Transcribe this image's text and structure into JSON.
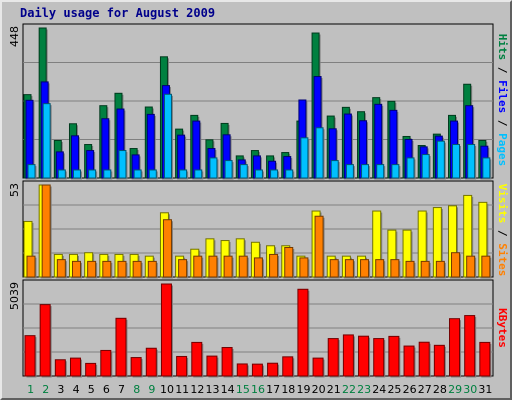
{
  "title": "Daily usage for August 2009",
  "colors": {
    "hits": "#008040",
    "files": "#0000ff",
    "pages": "#00c0ff",
    "visits": "#ffff00",
    "sites": "#ff8000",
    "kbytes": "#ff0000",
    "weekday": "#000000",
    "weekend": "#008040",
    "title": "#00008b"
  },
  "chart_data": [
    {
      "type": "bar",
      "title": "Daily usage for August 2009",
      "categories": [
        "1",
        "2",
        "3",
        "4",
        "5",
        "6",
        "7",
        "8",
        "9",
        "10",
        "11",
        "12",
        "13",
        "14",
        "15",
        "16",
        "17",
        "18",
        "19",
        "20",
        "21",
        "22",
        "23",
        "24",
        "25",
        "26",
        "27",
        "28",
        "29",
        "30",
        "31"
      ],
      "weekend_days": [
        "1",
        "2",
        "8",
        "9",
        "15",
        "16",
        "22",
        "23",
        "29",
        "30"
      ],
      "y_max_label": "448",
      "ylim": [
        0,
        448
      ],
      "series": [
        {
          "name": "Hits",
          "values": [
            249,
            448,
            112,
            162,
            100,
            216,
            253,
            88,
            212,
            362,
            146,
            187,
            114,
            163,
            66,
            82,
            66,
            76,
            170,
            433,
            185,
            211,
            198,
            240,
            229,
            124,
            97,
            131,
            187,
            280,
            112
          ]
        },
        {
          "name": "Files",
          "values": [
            232,
            287,
            78,
            126,
            82,
            177,
            206,
            69,
            190,
            276,
            128,
            170,
            88,
            129,
            54,
            66,
            50,
            64,
            233,
            303,
            147,
            191,
            171,
            220,
            202,
            115,
            93,
            125,
            170,
            216,
            95
          ]
        },
        {
          "name": "Pages",
          "values": [
            40,
            222,
            24,
            24,
            24,
            24,
            82,
            24,
            24,
            250,
            24,
            24,
            60,
            52,
            40,
            24,
            24,
            24,
            120,
            150,
            52,
            40,
            40,
            40,
            40,
            60,
            70,
            110,
            100,
            100,
            60
          ]
        }
      ],
      "right_labels": {
        "pages": "Pages",
        "files": "Files",
        "hits": "Hits",
        "sep": " / "
      }
    },
    {
      "type": "bar",
      "y_max_label": "53",
      "ylim": [
        0,
        53
      ],
      "series": [
        {
          "name": "Visits",
          "values": [
            32,
            53,
            13,
            13,
            14,
            13,
            13,
            13,
            12,
            37,
            12,
            16,
            22,
            21,
            22,
            20,
            18,
            18,
            12,
            38,
            12,
            12,
            12,
            38,
            27,
            27,
            38,
            40,
            41,
            47,
            43
          ]
        },
        {
          "name": "Sites",
          "values": [
            12,
            53,
            10,
            9,
            9,
            9,
            9,
            9,
            9,
            33,
            10,
            12,
            12,
            12,
            12,
            11,
            13,
            17,
            11,
            35,
            10,
            10,
            10,
            10,
            10,
            9,
            9,
            9,
            14,
            12,
            12
          ]
        }
      ],
      "right_labels": {
        "sites": "Sites",
        "visits": "Visits",
        "sep": " / "
      }
    },
    {
      "type": "bar",
      "y_max_label": "5039",
      "ylim": [
        0,
        5039
      ],
      "series": [
        {
          "name": "KBytes",
          "values": [
            2210,
            3910,
            890,
            980,
            690,
            1400,
            3160,
            1010,
            1520,
            5039,
            1070,
            1840,
            1090,
            1560,
            660,
            650,
            700,
            1050,
            4750,
            980,
            2050,
            2250,
            2180,
            2050,
            2170,
            1640,
            1850,
            1680,
            3140,
            3310,
            1840
          ]
        }
      ],
      "right_labels": {
        "kbytes": "KBytes"
      }
    }
  ]
}
